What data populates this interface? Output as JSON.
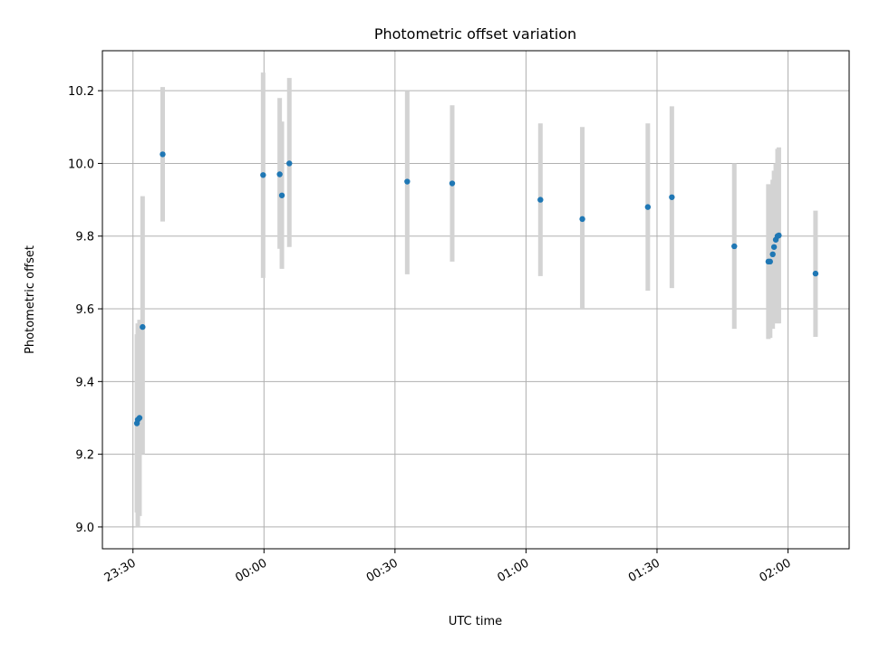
{
  "chart_data": {
    "type": "scatter",
    "title": "Photometric offset variation",
    "xlabel": "UTC time",
    "ylabel": "Photometric offset",
    "x_unit": "minutes relative to 00:00 UTC",
    "xlim": [
      -37,
      134
    ],
    "ylim": [
      8.94,
      10.31
    ],
    "grid": true,
    "xticks": [
      {
        "value": -30,
        "label": "23:30"
      },
      {
        "value": 0,
        "label": "00:00"
      },
      {
        "value": 30,
        "label": "00:30"
      },
      {
        "value": 60,
        "label": "01:00"
      },
      {
        "value": 90,
        "label": "01:30"
      },
      {
        "value": 120,
        "label": "02:00"
      }
    ],
    "yticks": [
      {
        "value": 9.0,
        "label": "9.0"
      },
      {
        "value": 9.2,
        "label": "9.2"
      },
      {
        "value": 9.4,
        "label": "9.4"
      },
      {
        "value": 9.6,
        "label": "9.6"
      },
      {
        "value": 9.8,
        "label": "9.8"
      },
      {
        "value": 10.0,
        "label": "10.0"
      },
      {
        "value": 10.2,
        "label": "10.2"
      }
    ],
    "series": [
      {
        "marker_color": "#1f77b4",
        "error_color": "#d3d3d3",
        "points": [
          {
            "x": -29.1,
            "y": 9.285,
            "ylow": 9.04,
            "yhigh": 9.53
          },
          {
            "x": -28.9,
            "y": 9.295,
            "ylow": 9.0,
            "yhigh": 9.56
          },
          {
            "x": -28.5,
            "y": 9.3,
            "ylow": 9.03,
            "yhigh": 9.57
          },
          {
            "x": -27.8,
            "y": 9.55,
            "ylow": 9.2,
            "yhigh": 9.91
          },
          {
            "x": -23.2,
            "y": 10.025,
            "ylow": 9.84,
            "yhigh": 10.21
          },
          {
            "x": -0.2,
            "y": 9.968,
            "ylow": 9.685,
            "yhigh": 10.25
          },
          {
            "x": 3.6,
            "y": 9.97,
            "ylow": 9.765,
            "yhigh": 10.18
          },
          {
            "x": 4.1,
            "y": 9.912,
            "ylow": 9.71,
            "yhigh": 10.115
          },
          {
            "x": 5.8,
            "y": 10.0,
            "ylow": 9.77,
            "yhigh": 10.235
          },
          {
            "x": 32.8,
            "y": 9.95,
            "ylow": 9.695,
            "yhigh": 10.2
          },
          {
            "x": 43.1,
            "y": 9.945,
            "ylow": 9.73,
            "yhigh": 10.16
          },
          {
            "x": 63.3,
            "y": 9.9,
            "ylow": 9.69,
            "yhigh": 10.11
          },
          {
            "x": 72.9,
            "y": 9.847,
            "ylow": 9.6,
            "yhigh": 10.1
          },
          {
            "x": 87.9,
            "y": 9.88,
            "ylow": 9.65,
            "yhigh": 10.11
          },
          {
            "x": 93.4,
            "y": 9.907,
            "ylow": 9.657,
            "yhigh": 10.157
          },
          {
            "x": 107.7,
            "y": 9.772,
            "ylow": 9.545,
            "yhigh": 10.0
          },
          {
            "x": 115.5,
            "y": 9.73,
            "ylow": 9.517,
            "yhigh": 9.943
          },
          {
            "x": 115.9,
            "y": 9.73,
            "ylow": 9.52,
            "yhigh": 9.94
          },
          {
            "x": 116.5,
            "y": 9.75,
            "ylow": 9.545,
            "yhigh": 9.955
          },
          {
            "x": 116.8,
            "y": 9.77,
            "ylow": 9.56,
            "yhigh": 9.98
          },
          {
            "x": 117.2,
            "y": 9.79,
            "ylow": 9.57,
            "yhigh": 10.0
          },
          {
            "x": 117.6,
            "y": 9.8,
            "ylow": 9.56,
            "yhigh": 10.04
          },
          {
            "x": 117.9,
            "y": 9.802,
            "ylow": 9.56,
            "yhigh": 10.044
          },
          {
            "x": 126.3,
            "y": 9.697,
            "ylow": 9.523,
            "yhigh": 9.87
          }
        ]
      }
    ]
  }
}
